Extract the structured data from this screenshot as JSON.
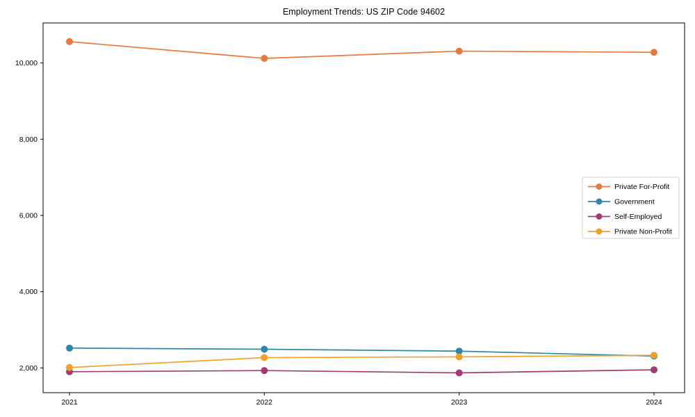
{
  "page": {
    "title": "Employment Trends: US ZIP Code 94602"
  },
  "chart_data": {
    "type": "line",
    "title": "Employment Trends: US ZIP Code 94602",
    "xlabel": "",
    "ylabel": "",
    "categories": [
      "2021",
      "2022",
      "2023",
      "2024"
    ],
    "series": [
      {
        "name": "Private For-Profit",
        "color": "#E8793D",
        "values": [
          10560,
          10120,
          10310,
          10280
        ]
      },
      {
        "name": "Government",
        "color": "#2E86AB",
        "values": [
          2520,
          2490,
          2440,
          2310
        ]
      },
      {
        "name": "Self-Employed",
        "color": "#A23B72",
        "values": [
          1900,
          1930,
          1870,
          1950
        ]
      },
      {
        "name": "Private Non-Profit",
        "color": "#F0A028",
        "values": [
          2010,
          2270,
          2290,
          2330
        ]
      }
    ],
    "yticks": [
      2000,
      4000,
      6000,
      8000,
      10000
    ],
    "ytick_labels": [
      "2,000",
      "4,000",
      "6,000",
      "8,000",
      "10,000"
    ],
    "ylim": [
      1350,
      11050
    ],
    "grid": false,
    "legend_position": "center right",
    "legend_entries": [
      "Private For-Profit",
      "Government",
      "Self-Employed",
      "Private Non-Profit"
    ],
    "axis_color": "#000000",
    "tick_label_color": "#000000",
    "background": "#ffffff"
  }
}
